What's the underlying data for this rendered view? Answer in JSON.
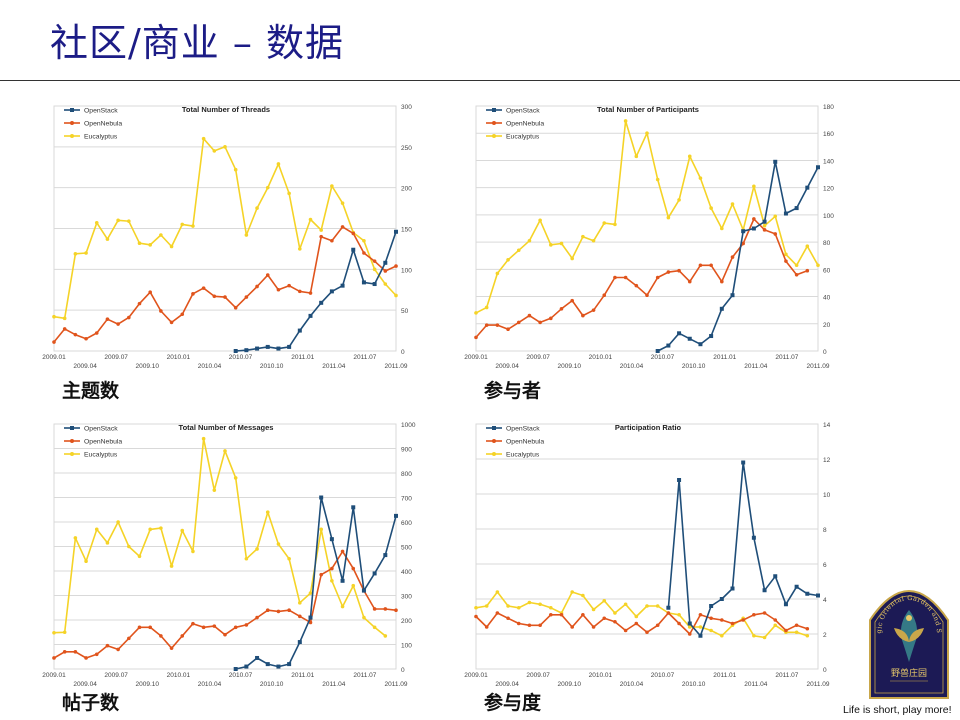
{
  "page": {
    "title": "社区/商业 – 数据",
    "footer": "Life is short, play more!",
    "colors": {
      "title": "#1c1c86",
      "openstack": "#1f4e79",
      "opennebula": "#e0541c",
      "eucalyptus": "#f5d327"
    },
    "logo": {
      "text": "Magic Oriental Garden and Soul",
      "text_cn": "野兽庄园",
      "icon": "phoenix-emblem"
    }
  },
  "charts": [
    {
      "id": "threads",
      "caption": "主题数"
    },
    {
      "id": "participants",
      "caption": "参与者"
    },
    {
      "id": "messages",
      "caption": "帖子数"
    },
    {
      "id": "ratio",
      "caption": "参与度"
    }
  ],
  "chart_data": [
    {
      "type": "line",
      "title": "Total Number of Threads",
      "ylim": [
        0,
        300
      ],
      "yticks": [
        0,
        50,
        100,
        150,
        200,
        250,
        300
      ],
      "x_labels_top": [
        "2009.01",
        "2009.07",
        "2010.01",
        "2010.07",
        "2011.01",
        "2011.07"
      ],
      "x_labels_bottom": [
        "2009.04",
        "2009.10",
        "2010.04",
        "2010.10",
        "2011.04",
        "2011.09"
      ],
      "legend": [
        "OpenStack",
        "OpenNebula",
        "Eucalyptus"
      ],
      "series": [
        {
          "name": "Eucalyptus",
          "values": [
            42,
            40,
            119,
            120,
            157,
            137,
            160,
            159,
            132,
            130,
            142,
            128,
            155,
            153,
            260,
            245,
            250,
            222,
            142,
            175,
            200,
            229,
            193,
            125,
            161,
            148,
            202,
            181,
            145,
            135,
            100,
            82,
            68
          ]
        },
        {
          "name": "OpenNebula",
          "values": [
            11,
            27,
            20,
            15,
            22,
            39,
            33,
            41,
            58,
            72,
            49,
            35,
            45,
            70,
            77,
            67,
            66,
            53,
            66,
            79,
            93,
            75,
            80,
            73,
            71,
            140,
            135,
            152,
            144,
            120,
            110,
            98,
            104
          ]
        },
        {
          "name": "OpenStack",
          "values": [
            null,
            null,
            null,
            null,
            null,
            null,
            null,
            null,
            null,
            null,
            null,
            null,
            null,
            null,
            null,
            null,
            null,
            0,
            1,
            3,
            5,
            3,
            5,
            25,
            43,
            59,
            73,
            80,
            124,
            84,
            82,
            108,
            146
          ]
        }
      ]
    },
    {
      "type": "line",
      "title": "Total Number of Participants",
      "ylim": [
        0,
        180
      ],
      "yticks": [
        0,
        20,
        40,
        60,
        80,
        100,
        120,
        140,
        160,
        180
      ],
      "x_labels_top": [
        "2009.01",
        "2009.07",
        "2010.01",
        "2010.07",
        "2011.01",
        "2011.07"
      ],
      "x_labels_bottom": [
        "2009.04",
        "2009.10",
        "2010.04",
        "2010.10",
        "2011.04",
        "2011.09"
      ],
      "legend": [
        "OpenStack",
        "OpenNebula",
        "Eucalyptus"
      ],
      "series": [
        {
          "name": "Eucalyptus",
          "values": [
            28,
            32,
            57,
            67,
            74,
            81,
            96,
            78,
            79,
            68,
            84,
            81,
            94,
            93,
            169,
            143,
            160,
            126,
            98,
            111,
            143,
            127,
            105,
            90,
            108,
            89,
            121,
            92,
            99,
            71,
            63,
            77,
            63
          ]
        },
        {
          "name": "OpenNebula",
          "values": [
            10,
            19,
            19,
            16,
            21,
            26,
            21,
            24,
            31,
            37,
            26,
            30,
            41,
            54,
            54,
            48,
            41,
            54,
            58,
            59,
            51,
            63,
            63,
            51,
            69,
            79,
            97,
            89,
            86,
            66,
            56,
            59,
            null
          ]
        },
        {
          "name": "OpenStack",
          "values": [
            null,
            null,
            null,
            null,
            null,
            null,
            null,
            null,
            null,
            null,
            null,
            null,
            null,
            null,
            null,
            null,
            null,
            0,
            4,
            13,
            9,
            5,
            11,
            31,
            41,
            88,
            90,
            95,
            139,
            101,
            105,
            120,
            135
          ]
        }
      ]
    },
    {
      "type": "line",
      "title": "Total Number of Messages",
      "ylim": [
        0,
        1000
      ],
      "yticks": [
        0,
        100,
        200,
        300,
        400,
        500,
        600,
        700,
        800,
        900,
        1000
      ],
      "x_labels_top": [
        "2009.01",
        "2009.07",
        "2010.01",
        "2010.07",
        "2011.01",
        "2011.07"
      ],
      "x_labels_bottom": [
        "2009.04",
        "2009.10",
        "2010.04",
        "2010.10",
        "2011.04",
        "2011.09"
      ],
      "legend": [
        "OpenStack",
        "OpenNebula",
        "Eucalyptus"
      ],
      "series": [
        {
          "name": "Eucalyptus",
          "values": [
            148,
            150,
            535,
            440,
            570,
            515,
            600,
            500,
            460,
            570,
            575,
            420,
            565,
            480,
            940,
            730,
            890,
            780,
            450,
            490,
            640,
            510,
            450,
            270,
            310,
            570,
            360,
            255,
            340,
            210,
            170,
            135,
            null
          ]
        },
        {
          "name": "OpenNebula",
          "values": [
            45,
            70,
            70,
            45,
            60,
            95,
            80,
            125,
            170,
            170,
            135,
            85,
            135,
            185,
            170,
            175,
            140,
            170,
            180,
            210,
            240,
            235,
            240,
            215,
            190,
            385,
            410,
            480,
            410,
            320,
            245,
            245,
            240
          ]
        },
        {
          "name": "OpenStack",
          "values": [
            null,
            null,
            null,
            null,
            null,
            null,
            null,
            null,
            null,
            null,
            null,
            null,
            null,
            null,
            null,
            null,
            null,
            0,
            10,
            45,
            20,
            10,
            20,
            110,
            210,
            700,
            530,
            360,
            660,
            320,
            390,
            465,
            625
          ]
        }
      ]
    },
    {
      "type": "line",
      "title": "Participation Ratio",
      "ylim": [
        0,
        14
      ],
      "yticks": [
        0,
        2,
        4,
        6,
        8,
        10,
        12,
        14
      ],
      "x_labels_top": [
        "2009.01",
        "2009.07",
        "2010.01",
        "2010.07",
        "2011.01",
        "2011.07"
      ],
      "x_labels_bottom": [
        "2009.04",
        "2009.10",
        "2010.04",
        "2010.10",
        "2011.04",
        "2011.09"
      ],
      "legend": [
        "OpenStack",
        "OpenNebula",
        "Eucalyptus"
      ],
      "series": [
        {
          "name": "Eucalyptus",
          "values": [
            3.5,
            3.6,
            4.4,
            3.6,
            3.5,
            3.8,
            3.7,
            3.5,
            3.2,
            4.4,
            4.2,
            3.4,
            3.9,
            3.2,
            3.7,
            3.0,
            3.6,
            3.6,
            3.2,
            3.1,
            2.4,
            2.4,
            2.2,
            1.9,
            2.5,
            2.9,
            1.9,
            1.8,
            2.5,
            2.1,
            2.1,
            1.9,
            null
          ]
        },
        {
          "name": "OpenNebula",
          "values": [
            3.0,
            2.4,
            3.2,
            2.9,
            2.6,
            2.5,
            2.5,
            3.1,
            3.1,
            2.4,
            3.1,
            2.4,
            2.9,
            2.7,
            2.2,
            2.6,
            2.1,
            2.5,
            3.2,
            2.6,
            2.0,
            3.1,
            2.9,
            2.8,
            2.6,
            2.8,
            3.1,
            3.2,
            2.8,
            2.2,
            2.5,
            2.3,
            null
          ]
        },
        {
          "name": "OpenStack",
          "values": [
            null,
            null,
            null,
            null,
            null,
            null,
            null,
            null,
            null,
            null,
            null,
            null,
            null,
            null,
            null,
            null,
            null,
            null,
            3.5,
            10.8,
            2.6,
            1.9,
            3.6,
            4.0,
            4.6,
            11.8,
            7.5,
            4.5,
            5.3,
            3.7,
            4.7,
            4.3,
            4.2
          ]
        }
      ]
    }
  ]
}
